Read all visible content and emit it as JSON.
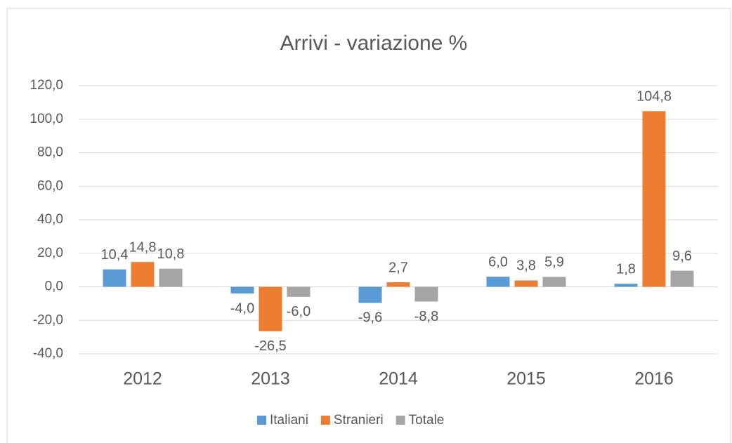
{
  "chart_data": {
    "type": "bar",
    "title": "Arrivi - variazione %",
    "categories": [
      "2012",
      "2013",
      "2014",
      "2015",
      "2016"
    ],
    "series": [
      {
        "name": "Italiani",
        "color": "#5b9bd5",
        "values": [
          10.4,
          -4.0,
          -9.6,
          6.0,
          1.8
        ],
        "value_labels": [
          "10,4",
          "-4,0",
          "-9,6",
          "6,0",
          "1,8"
        ]
      },
      {
        "name": "Stranieri",
        "color": "#ed7d31",
        "values": [
          14.8,
          -26.5,
          2.7,
          3.8,
          104.8
        ],
        "value_labels": [
          "14,8",
          "-26,5",
          "2,7",
          "3,8",
          "104,8"
        ]
      },
      {
        "name": "Totale",
        "color": "#a5a5a5",
        "values": [
          10.8,
          -6.0,
          -8.8,
          5.9,
          9.6
        ],
        "value_labels": [
          "10,8",
          "-6,0",
          "-8,8",
          "5,9",
          "9,6"
        ]
      }
    ],
    "ylim": [
      -40,
      120
    ],
    "yticks": [
      {
        "value": -40,
        "label": "-40,0"
      },
      {
        "value": -20,
        "label": "-20,0"
      },
      {
        "value": 0,
        "label": "0,0"
      },
      {
        "value": 20,
        "label": "20,0"
      },
      {
        "value": 40,
        "label": "40,0"
      },
      {
        "value": 60,
        "label": "60,0"
      },
      {
        "value": 80,
        "label": "80,0"
      },
      {
        "value": 100,
        "label": "100,0"
      },
      {
        "value": 120,
        "label": "120,0"
      }
    ],
    "grid": true,
    "legend": "bottom"
  }
}
